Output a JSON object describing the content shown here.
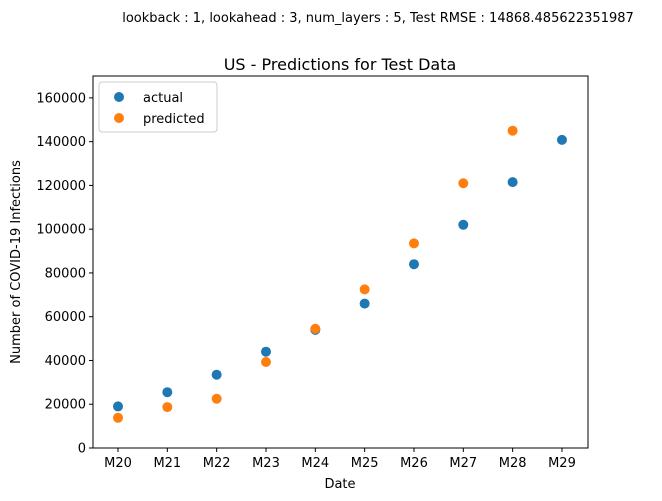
{
  "chart_data": {
    "type": "scatter",
    "suptitle": "lookback : 1, lookahead : 3, num_layers : 5, Test RMSE : 14868.485622351987",
    "title": "US - Predictions for Test Data",
    "xlabel": "Date",
    "ylabel": "Number of COVID-19 Infections",
    "categories": [
      "M20",
      "M21",
      "M22",
      "M23",
      "M24",
      "M25",
      "M26",
      "M27",
      "M28",
      "M29"
    ],
    "ylim": [
      0,
      170000
    ],
    "yticks": [
      0,
      20000,
      40000,
      60000,
      80000,
      100000,
      120000,
      140000,
      160000
    ],
    "legend_position": "upper-left",
    "grid": false,
    "series": [
      {
        "name": "actual",
        "color": "#1f77b4",
        "x": [
          "M20",
          "M21",
          "M22",
          "M23",
          "M24",
          "M25",
          "M26",
          "M27",
          "M28",
          "M29"
        ],
        "values": [
          19000,
          25500,
          33500,
          44000,
          54000,
          66000,
          84000,
          102000,
          121500,
          140800
        ]
      },
      {
        "name": "predicted",
        "color": "#ff7f0e",
        "x": [
          "M20",
          "M21",
          "M22",
          "M23",
          "M24",
          "M25",
          "M26",
          "M27",
          "M28"
        ],
        "values": [
          13800,
          18700,
          22500,
          39300,
          54500,
          72500,
          93500,
          121000,
          145000
        ]
      }
    ]
  }
}
